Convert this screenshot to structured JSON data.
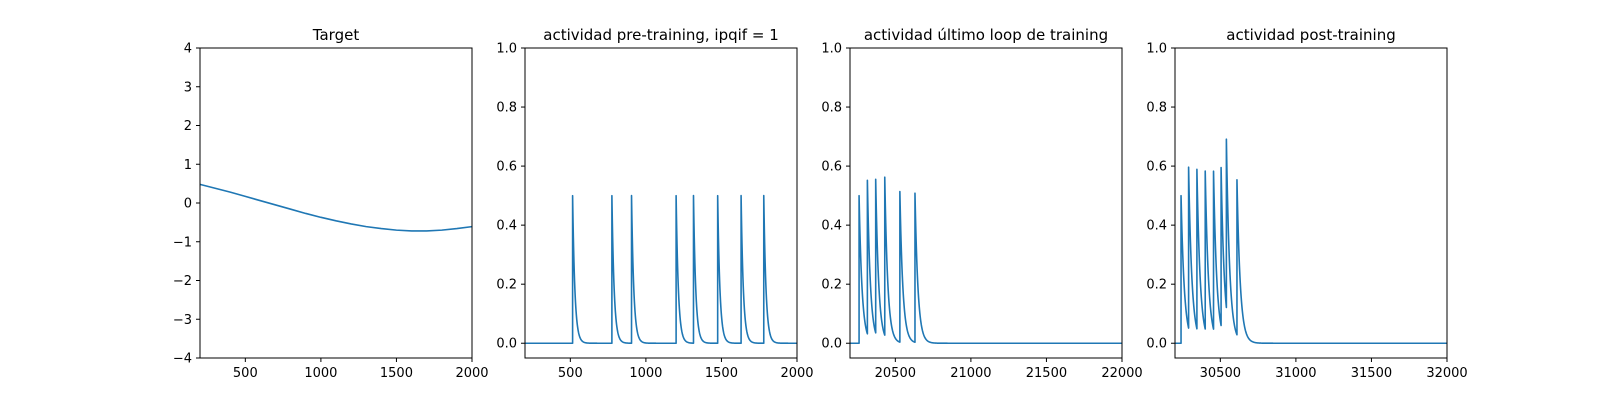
{
  "figure": {
    "line_color": "#1f77b4"
  },
  "chart_data": [
    {
      "type": "line",
      "title": "Target",
      "xlim": [
        200,
        2000
      ],
      "ylim": [
        -4,
        4
      ],
      "xticks": [
        500,
        1000,
        1500,
        2000
      ],
      "xtick_labels": [
        "500",
        "1000",
        "1500",
        "2000"
      ],
      "yticks": [
        -4,
        -3,
        -2,
        -1,
        0,
        1,
        2,
        3,
        4
      ],
      "ytick_labels": [
        "−4",
        "−3",
        "−2",
        "−1",
        "0",
        "1",
        "2",
        "3",
        "4"
      ],
      "grid": false,
      "series": [
        {
          "x": [
            200,
            300,
            400,
            500,
            600,
            700,
            800,
            900,
            1000,
            1100,
            1200,
            1300,
            1400,
            1500,
            1600,
            1700,
            1800,
            1900,
            2000
          ],
          "y": [
            0.48,
            0.38,
            0.28,
            0.17,
            0.06,
            -0.05,
            -0.16,
            -0.27,
            -0.37,
            -0.46,
            -0.54,
            -0.61,
            -0.66,
            -0.7,
            -0.72,
            -0.72,
            -0.7,
            -0.66,
            -0.61
          ]
        }
      ]
    },
    {
      "type": "line",
      "title": "actividad pre-training, ipqif = 1",
      "xlim": [
        200,
        2000
      ],
      "ylim": [
        -0.05,
        1.0
      ],
      "xticks": [
        500,
        1000,
        1500,
        2000
      ],
      "xtick_labels": [
        "500",
        "1000",
        "1500",
        "2000"
      ],
      "yticks": [
        0.0,
        0.2,
        0.4,
        0.6,
        0.8,
        1.0
      ],
      "ytick_labels": [
        "0.0",
        "0.2",
        "0.4",
        "0.6",
        "0.8",
        "1.0"
      ],
      "grid": false,
      "series": [
        {
          "baseline": 0.0,
          "spikes": [
            {
              "x": 515,
              "peak": 0.5
            },
            {
              "x": 775,
              "peak": 0.5
            },
            {
              "x": 905,
              "peak": 0.5
            },
            {
              "x": 1200,
              "peak": 0.5
            },
            {
              "x": 1315,
              "peak": 0.5
            },
            {
              "x": 1475,
              "peak": 0.5
            },
            {
              "x": 1630,
              "peak": 0.5
            },
            {
              "x": 1780,
              "peak": 0.5
            }
          ],
          "decay": 15
        }
      ]
    },
    {
      "type": "line",
      "title": "actividad último loop de training",
      "xlim": [
        20200,
        22000
      ],
      "ylim": [
        -0.05,
        1.0
      ],
      "xticks": [
        20500,
        21000,
        21500,
        22000
      ],
      "xtick_labels": [
        "20500",
        "21000",
        "21500",
        "22000"
      ],
      "yticks": [
        0.0,
        0.2,
        0.4,
        0.6,
        0.8,
        1.0
      ],
      "ytick_labels": [
        "0.0",
        "0.2",
        "0.4",
        "0.6",
        "0.8",
        "1.0"
      ],
      "grid": false,
      "series": [
        {
          "baseline": 0.0,
          "spikes": [
            {
              "x": 20260,
              "peak": 0.5
            },
            {
              "x": 20315,
              "peak": 0.52
            },
            {
              "x": 20370,
              "peak": 0.52
            },
            {
              "x": 20430,
              "peak": 0.535
            },
            {
              "x": 20530,
              "peak": 0.51
            },
            {
              "x": 20630,
              "peak": 0.505
            }
          ],
          "decay": 20
        }
      ]
    },
    {
      "type": "line",
      "title": "actividad post-training",
      "xlim": [
        30200,
        32000
      ],
      "ylim": [
        -0.05,
        1.0
      ],
      "xticks": [
        30500,
        31000,
        31500,
        32000
      ],
      "xtick_labels": [
        "30500",
        "31000",
        "31500",
        "32000"
      ],
      "yticks": [
        0.0,
        0.2,
        0.4,
        0.6,
        0.8,
        1.0
      ],
      "ytick_labels": [
        "0.0",
        "0.2",
        "0.4",
        "0.6",
        "0.8",
        "1.0"
      ],
      "grid": false,
      "series": [
        {
          "baseline": 0.0,
          "spikes": [
            {
              "x": 30240,
              "peak": 0.5
            },
            {
              "x": 30290,
              "peak": 0.545
            },
            {
              "x": 30345,
              "peak": 0.54
            },
            {
              "x": 30400,
              "peak": 0.535
            },
            {
              "x": 30455,
              "peak": 0.535
            },
            {
              "x": 30505,
              "peak": 0.535
            },
            {
              "x": 30540,
              "peak": 0.57
            },
            {
              "x": 30610,
              "peak": 0.525
            }
          ],
          "decay": 22
        }
      ]
    }
  ]
}
